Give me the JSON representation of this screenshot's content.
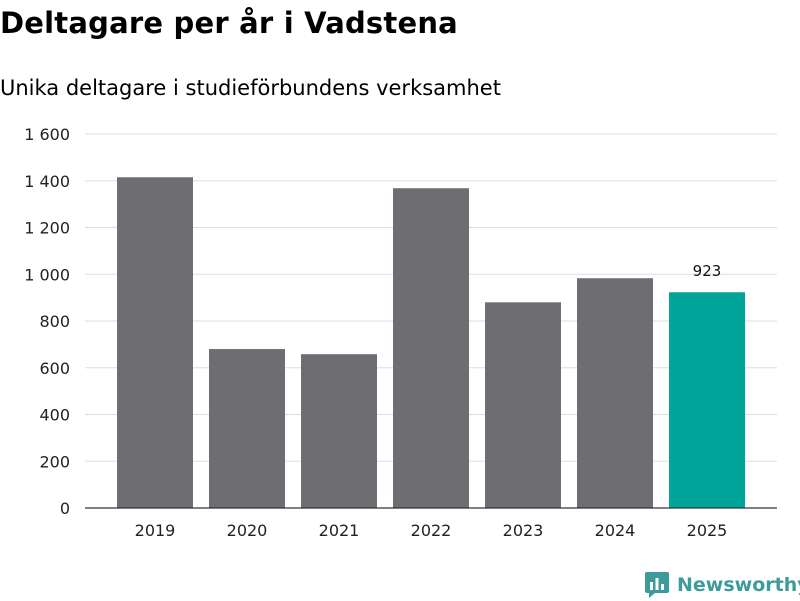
{
  "header": {
    "title": "Deltagare per år i Vadstena",
    "subtitle": "Unika deltagare i studieförbundens verksamhet"
  },
  "brand": {
    "name": "Newsworthy",
    "icon": "bar-chart-logo-icon",
    "color": "#3e9b9c"
  },
  "chart_data": {
    "type": "bar",
    "categories": [
      "2019",
      "2020",
      "2021",
      "2022",
      "2023",
      "2024",
      "2025"
    ],
    "values": [
      1415,
      680,
      658,
      1368,
      880,
      983,
      923
    ],
    "data_labels": [
      null,
      null,
      null,
      null,
      null,
      null,
      "923"
    ],
    "y_ticks": [
      0,
      200,
      400,
      600,
      800,
      1000,
      1200,
      1400,
      1600
    ],
    "y_tick_labels": [
      "0",
      "200",
      "400",
      "600",
      "800",
      "1 000",
      "1 200",
      "1 400",
      "1 600"
    ],
    "ylim": [
      0,
      1600
    ],
    "grid": true,
    "colors": {
      "default": "#6e6d72",
      "highlight": "#00a59a",
      "grid": "#dddddd",
      "axis": "#333333"
    },
    "highlight_index": 6
  }
}
